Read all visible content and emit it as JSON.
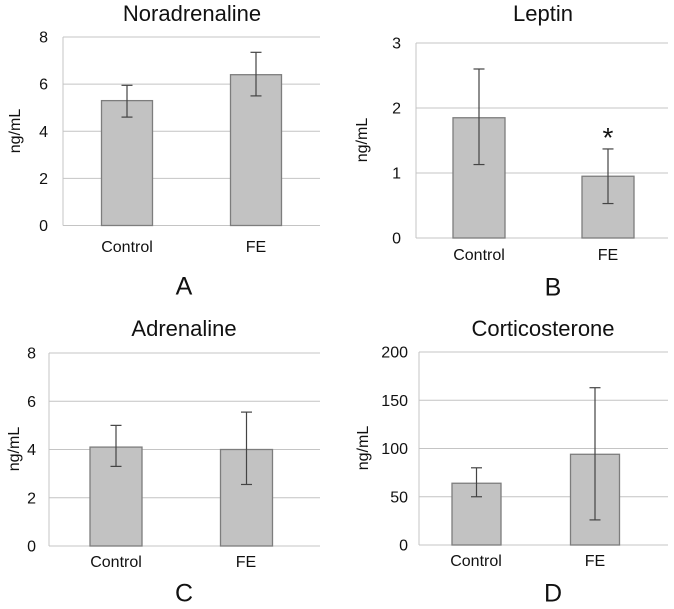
{
  "figure": {
    "background": "#ffffff",
    "panel_order": [
      "A",
      "B",
      "C",
      "D"
    ]
  },
  "colors": {
    "bar_fill": "#c2c2c2",
    "bar_border": "#7d7d7d",
    "grid_line": "#c4c4c4",
    "axis_line": "#c4c4c4",
    "error_bar": "#444444",
    "text": "#111111"
  },
  "chart_data": [
    {
      "type": "bar",
      "title": "Noradrenaline",
      "panel_label": "A",
      "xlabel": "",
      "ylabel": "ng/mL",
      "categories": [
        "Control",
        "FE"
      ],
      "values": [
        5.3,
        6.4
      ],
      "error_upper": [
        5.95,
        7.35
      ],
      "error_lower": [
        4.6,
        5.5
      ],
      "ylim": [
        0,
        8
      ],
      "yticks": [
        0,
        2,
        4,
        6,
        8
      ],
      "grid": true,
      "legend": false,
      "annotations": []
    },
    {
      "type": "bar",
      "title": "Leptin",
      "panel_label": "B",
      "xlabel": "",
      "ylabel": "ng/mL",
      "categories": [
        "Control",
        "FE"
      ],
      "values": [
        1.85,
        0.95
      ],
      "error_upper": [
        2.6,
        1.37
      ],
      "error_lower": [
        1.13,
        0.53
      ],
      "ylim": [
        0,
        3
      ],
      "yticks": [
        0,
        1,
        2,
        3
      ],
      "grid": true,
      "legend": false,
      "annotations": [
        {
          "text": "*",
          "category": "FE"
        }
      ]
    },
    {
      "type": "bar",
      "title": "Adrenaline",
      "panel_label": "C",
      "xlabel": "",
      "ylabel": "ng/mL",
      "categories": [
        "Control",
        "FE"
      ],
      "values": [
        4.1,
        4.0
      ],
      "error_upper": [
        5.0,
        5.55
      ],
      "error_lower": [
        3.3,
        2.55
      ],
      "ylim": [
        0,
        8
      ],
      "yticks": [
        0,
        2,
        4,
        6,
        8
      ],
      "grid": true,
      "legend": false,
      "annotations": []
    },
    {
      "type": "bar",
      "title": "Corticosterone",
      "panel_label": "D",
      "xlabel": "",
      "ylabel": "ng/mL",
      "categories": [
        "Control",
        "FE"
      ],
      "values": [
        64,
        94
      ],
      "error_upper": [
        80,
        163
      ],
      "error_lower": [
        50,
        26
      ],
      "ylim": [
        0,
        200
      ],
      "yticks": [
        0,
        50,
        100,
        150,
        200
      ],
      "grid": true,
      "legend": false,
      "annotations": []
    }
  ]
}
